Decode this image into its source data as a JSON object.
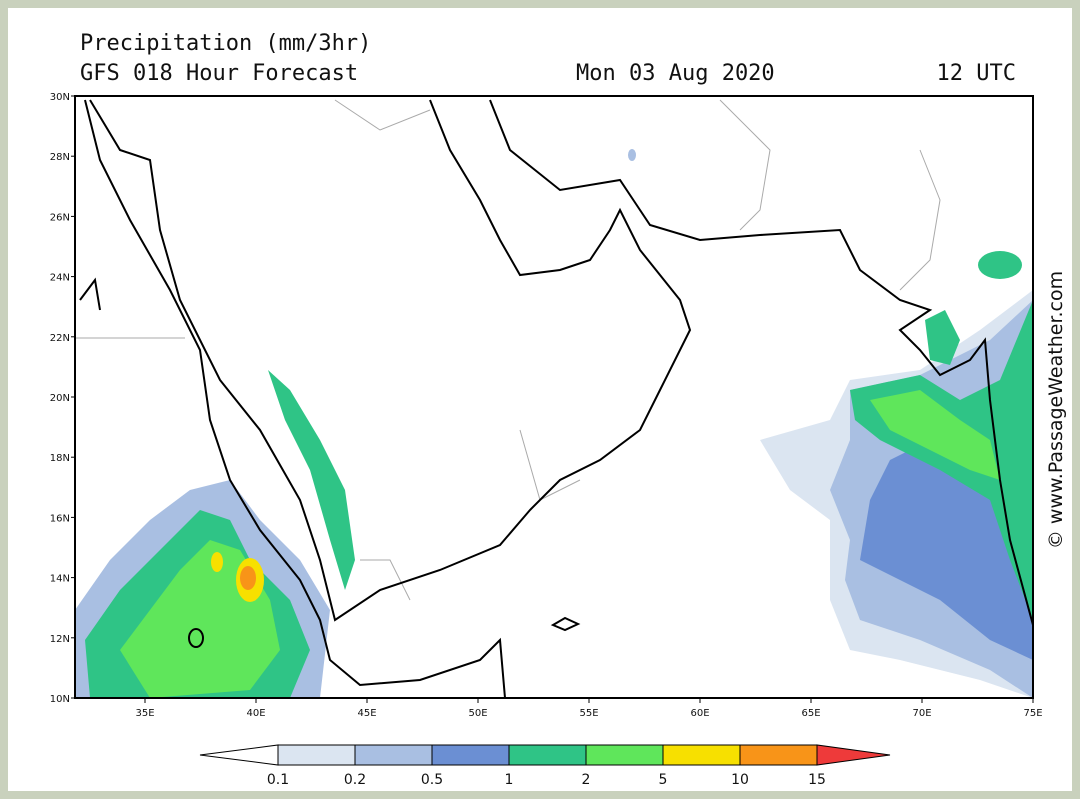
{
  "header": {
    "title": "Precipitation (mm/3hr)",
    "subtitle": "GFS 018 Hour Forecast",
    "date": "Mon 03 Aug 2020",
    "time": "12 UTC"
  },
  "map": {
    "lat_labels": [
      "30N",
      "28N",
      "26N",
      "24N",
      "22N",
      "20N",
      "18N",
      "16N",
      "14N",
      "12N",
      "10N"
    ],
    "lon_labels": [
      "35E",
      "40E",
      "45E",
      "50E",
      "55E",
      "60E",
      "65E",
      "70E",
      "75E"
    ]
  },
  "colorbar": {
    "levels": [
      "0.1",
      "0.2",
      "0.5",
      "1",
      "2",
      "5",
      "10",
      "15"
    ],
    "colors": [
      "#ffffff",
      "#dbe5f1",
      "#a9bfe2",
      "#6b8fd3",
      "#2fc486",
      "#5fe65b",
      "#f7e000",
      "#f89418",
      "#ee3a3a"
    ]
  },
  "watermark": "© www.PassageWeather.com"
}
